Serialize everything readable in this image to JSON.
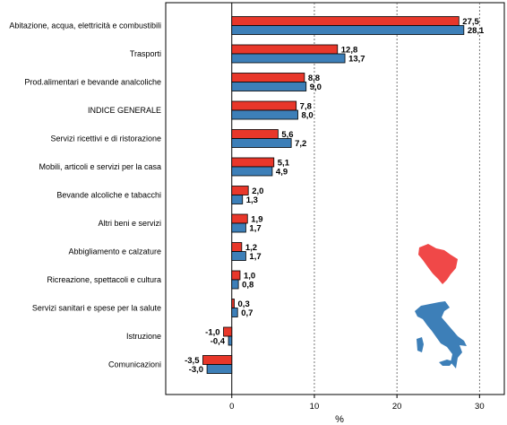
{
  "chart_data": {
    "type": "bar",
    "orientation": "horizontal",
    "categories": [
      "Abitazione, acqua, elettricità e combustibili",
      "Trasporti",
      "Prod.alimentari e bevande analcoliche",
      "INDICE GENERALE",
      "Servizi ricettivi e di ristorazione",
      "Mobili, articoli e servizi per la casa",
      "Bevande alcoliche e tabacchi",
      "Altri beni e servizi",
      "Abbigliamento e calzature",
      "Ricreazione, spettacoli e cultura",
      "Servizi sanitari e spese per la salute",
      "Istruzione",
      "Comunicazioni"
    ],
    "series": [
      {
        "color": "#e8372a",
        "region_icon": "tuscany-map-icon",
        "values": [
          27.5,
          12.8,
          8.8,
          7.8,
          5.6,
          5.1,
          2.0,
          1.9,
          1.2,
          1.0,
          0.3,
          -1.0,
          -3.5
        ],
        "labels": [
          "27,5",
          "12,8",
          "8,8",
          "7,8",
          "5,6",
          "5,1",
          "2,0",
          "1,9",
          "1,2",
          "1,0",
          "0,3",
          "-1,0",
          "-3,5"
        ]
      },
      {
        "color": "#3d7fb8",
        "region_icon": "italy-map-icon",
        "values": [
          28.1,
          13.7,
          9.0,
          8.0,
          7.2,
          4.9,
          1.3,
          1.7,
          1.7,
          0.8,
          0.7,
          -0.4,
          -3.0
        ],
        "labels": [
          "28,1",
          "13,7",
          "9,0",
          "8,0",
          "7,2",
          "4,9",
          "1,3",
          "1,7",
          "1,7",
          "0,8",
          "0,7",
          "-0,4",
          "-3,0"
        ]
      }
    ],
    "x_ticks": [
      "0",
      "10",
      "20",
      "30"
    ],
    "x_tick_values": [
      0,
      10,
      20,
      30
    ],
    "xlabel": "%",
    "xlim": [
      -8,
      33
    ],
    "grid": "dashed vertical at ticks"
  }
}
